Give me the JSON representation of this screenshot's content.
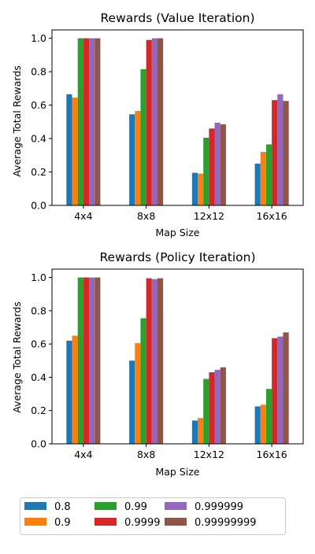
{
  "chart_data": [
    {
      "type": "bar",
      "title": "Rewards (Value Iteration)",
      "xlabel": "Map Size",
      "ylabel": "Average Total Rewards",
      "ylim": [
        0,
        1.05
      ],
      "yticks": [
        "0.0",
        "0.2",
        "0.4",
        "0.6",
        "0.8",
        "1.0"
      ],
      "categories": [
        "4x4",
        "8x8",
        "12x12",
        "16x16"
      ],
      "series": [
        {
          "name": "0.8",
          "values": [
            0.665,
            0.545,
            0.195,
            0.25
          ]
        },
        {
          "name": "0.9",
          "values": [
            0.645,
            0.565,
            0.19,
            0.32
          ]
        },
        {
          "name": "0.99",
          "values": [
            1.0,
            0.815,
            0.405,
            0.365
          ]
        },
        {
          "name": "0.9999",
          "values": [
            1.0,
            0.99,
            0.46,
            0.63
          ]
        },
        {
          "name": "0.999999",
          "values": [
            1.0,
            1.0,
            0.495,
            0.665
          ]
        },
        {
          "name": "0.99999999",
          "values": [
            1.0,
            1.0,
            0.485,
            0.625
          ]
        }
      ]
    },
    {
      "type": "bar",
      "title": "Rewards (Policy Iteration)",
      "xlabel": "Map Size",
      "ylabel": "Average Total Rewards",
      "ylim": [
        0,
        1.05
      ],
      "yticks": [
        "0.0",
        "0.2",
        "0.4",
        "0.6",
        "0.8",
        "1.0"
      ],
      "categories": [
        "4x4",
        "8x8",
        "12x12",
        "16x16"
      ],
      "series": [
        {
          "name": "0.8",
          "values": [
            0.62,
            0.5,
            0.14,
            0.225
          ]
        },
        {
          "name": "0.9",
          "values": [
            0.65,
            0.605,
            0.155,
            0.235
          ]
        },
        {
          "name": "0.99",
          "values": [
            1.0,
            0.755,
            0.39,
            0.33
          ]
        },
        {
          "name": "0.9999",
          "values": [
            1.0,
            0.995,
            0.43,
            0.635
          ]
        },
        {
          "name": "0.999999",
          "values": [
            1.0,
            0.99,
            0.445,
            0.645
          ]
        },
        {
          "name": "0.99999999",
          "values": [
            1.0,
            0.995,
            0.46,
            0.67
          ]
        }
      ]
    }
  ],
  "legend": {
    "position": "bottom",
    "entries": [
      "0.8",
      "0.9",
      "0.99",
      "0.9999",
      "0.999999",
      "0.99999999"
    ]
  },
  "colors": [
    "#1f77b4",
    "#ff7f0e",
    "#2ca02c",
    "#d62728",
    "#9467bd",
    "#8c564b"
  ]
}
